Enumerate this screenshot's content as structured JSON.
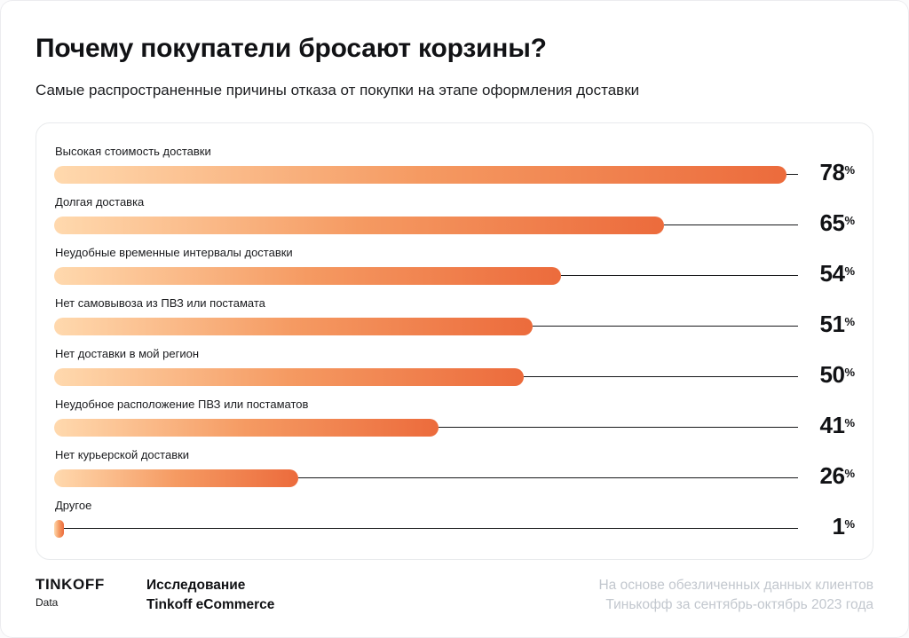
{
  "header": {
    "title": "Почему покупатели бросают корзины?",
    "subtitle": "Самые распространенные причины отказа от покупки на этапе оформления доставки"
  },
  "chart_data": {
    "type": "bar",
    "orientation": "horizontal",
    "title": "Почему покупатели бросают корзины?",
    "subtitle": "Самые распространенные причины отказа от покупки на этапе оформления доставки",
    "categories": [
      "Высокая стоимость доставки",
      "Долгая доставка",
      "Неудобные временные интервалы доставки",
      "Нет самовывоза из ПВЗ или постамата",
      "Нет доставки в мой регион",
      "Неудобное расположение ПВЗ или постаматов",
      "Нет курьерской доставки",
      "Другое"
    ],
    "values": [
      78,
      65,
      54,
      51,
      50,
      41,
      26,
      1
    ],
    "unit": "%",
    "xlim": [
      0,
      78
    ],
    "grid": false,
    "legend": "none",
    "bar_gradient": [
      "#ffd9ae",
      "#f59a62",
      "#ec6b3c"
    ]
  },
  "footer": {
    "logo": "TINKOFF",
    "logo_sub": "Data",
    "source_line1": "Исследование",
    "source_line2": "Tinkoff eCommerce",
    "note_line1": "На основе обезличенных данных клиентов",
    "note_line2": "Тинькофф за сентябрь-октябрь 2023 года"
  },
  "colors": {
    "accent_light": "#ffd9ae",
    "accent_dark": "#ec6b3c",
    "text": "#111215",
    "muted": "#c2c7ce",
    "card_border": "#e8eaec",
    "connector": "#17181a"
  }
}
